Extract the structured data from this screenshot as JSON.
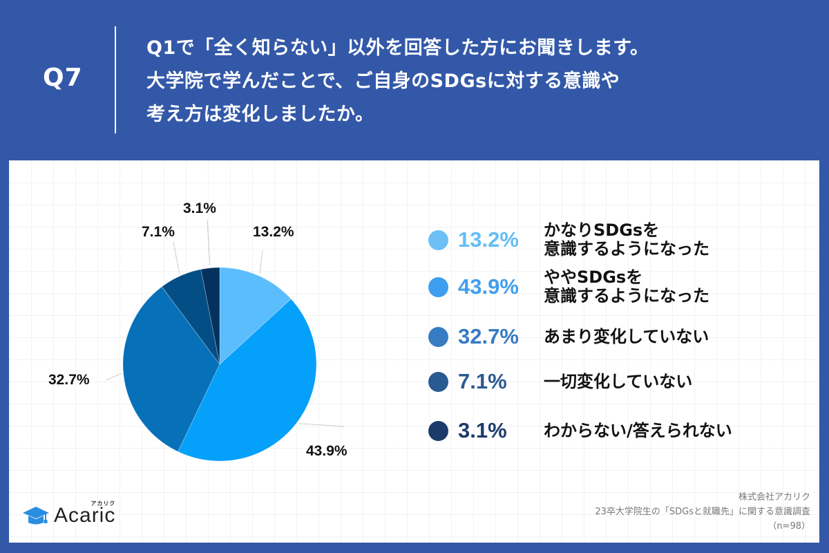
{
  "header": {
    "question_number": "Q7",
    "question_lines": [
      "Q1で「全く知らない」以外を回答した方にお聞きします。",
      "大学院で学んだことで、ご自身のSDGsに対する意識や",
      "考え方は変化しましたか。"
    ]
  },
  "chart_data": {
    "type": "pie",
    "title": "大学院で学んだことで、ご自身のSDGsに対する意識や考え方は変化しましたか。",
    "start_angle": "12 o'clock",
    "direction": "clockwise",
    "categories": [
      "かなりSDGsを意識するようになった",
      "ややSDGsを意識するようになった",
      "あまり変化していない",
      "一切変化していない",
      "わからない/答えられない"
    ],
    "values": [
      13.2,
      43.9,
      32.7,
      7.1,
      3.1
    ],
    "unit": "%",
    "colors": [
      "#5bbdfb",
      "#05a0fa",
      "#0670b8",
      "#044e86",
      "#04325e"
    ],
    "data_labels": [
      "13.2%",
      "43.9%",
      "32.7%",
      "7.1%",
      "3.1%"
    ],
    "legend_position": "right",
    "n": 98
  },
  "legend": {
    "items": [
      {
        "pct": "13.2%",
        "line1": "かなりSDGsを",
        "line2": "意識するようになった",
        "dot_color": "#6cc0f6",
        "pct_color": "#62bdf5"
      },
      {
        "pct": "43.9%",
        "line1": "ややSDGsを",
        "line2": "意識するようになった",
        "dot_color": "#3f9eef",
        "pct_color": "#3f9eef"
      },
      {
        "pct": "32.7%",
        "line1": "あまり変化していない",
        "line2": "",
        "dot_color": "#377bc3",
        "pct_color": "#377bc3"
      },
      {
        "pct": "7.1%",
        "line1": "一切変化していない",
        "line2": "",
        "dot_color": "#2a5a92",
        "pct_color": "#2a5a92"
      },
      {
        "pct": "3.1%",
        "line1": "わからない/答えられない",
        "line2": "",
        "dot_color": "#1b3b6b",
        "pct_color": "#1b3b6b"
      }
    ]
  },
  "logo": {
    "name": "Acaric",
    "kana": "アカリク"
  },
  "credit": {
    "company": "株式会社アカリク",
    "survey": "23卒大学院生の「SDGsと就職先」に関する意識調査",
    "sample": "（n=98）"
  }
}
